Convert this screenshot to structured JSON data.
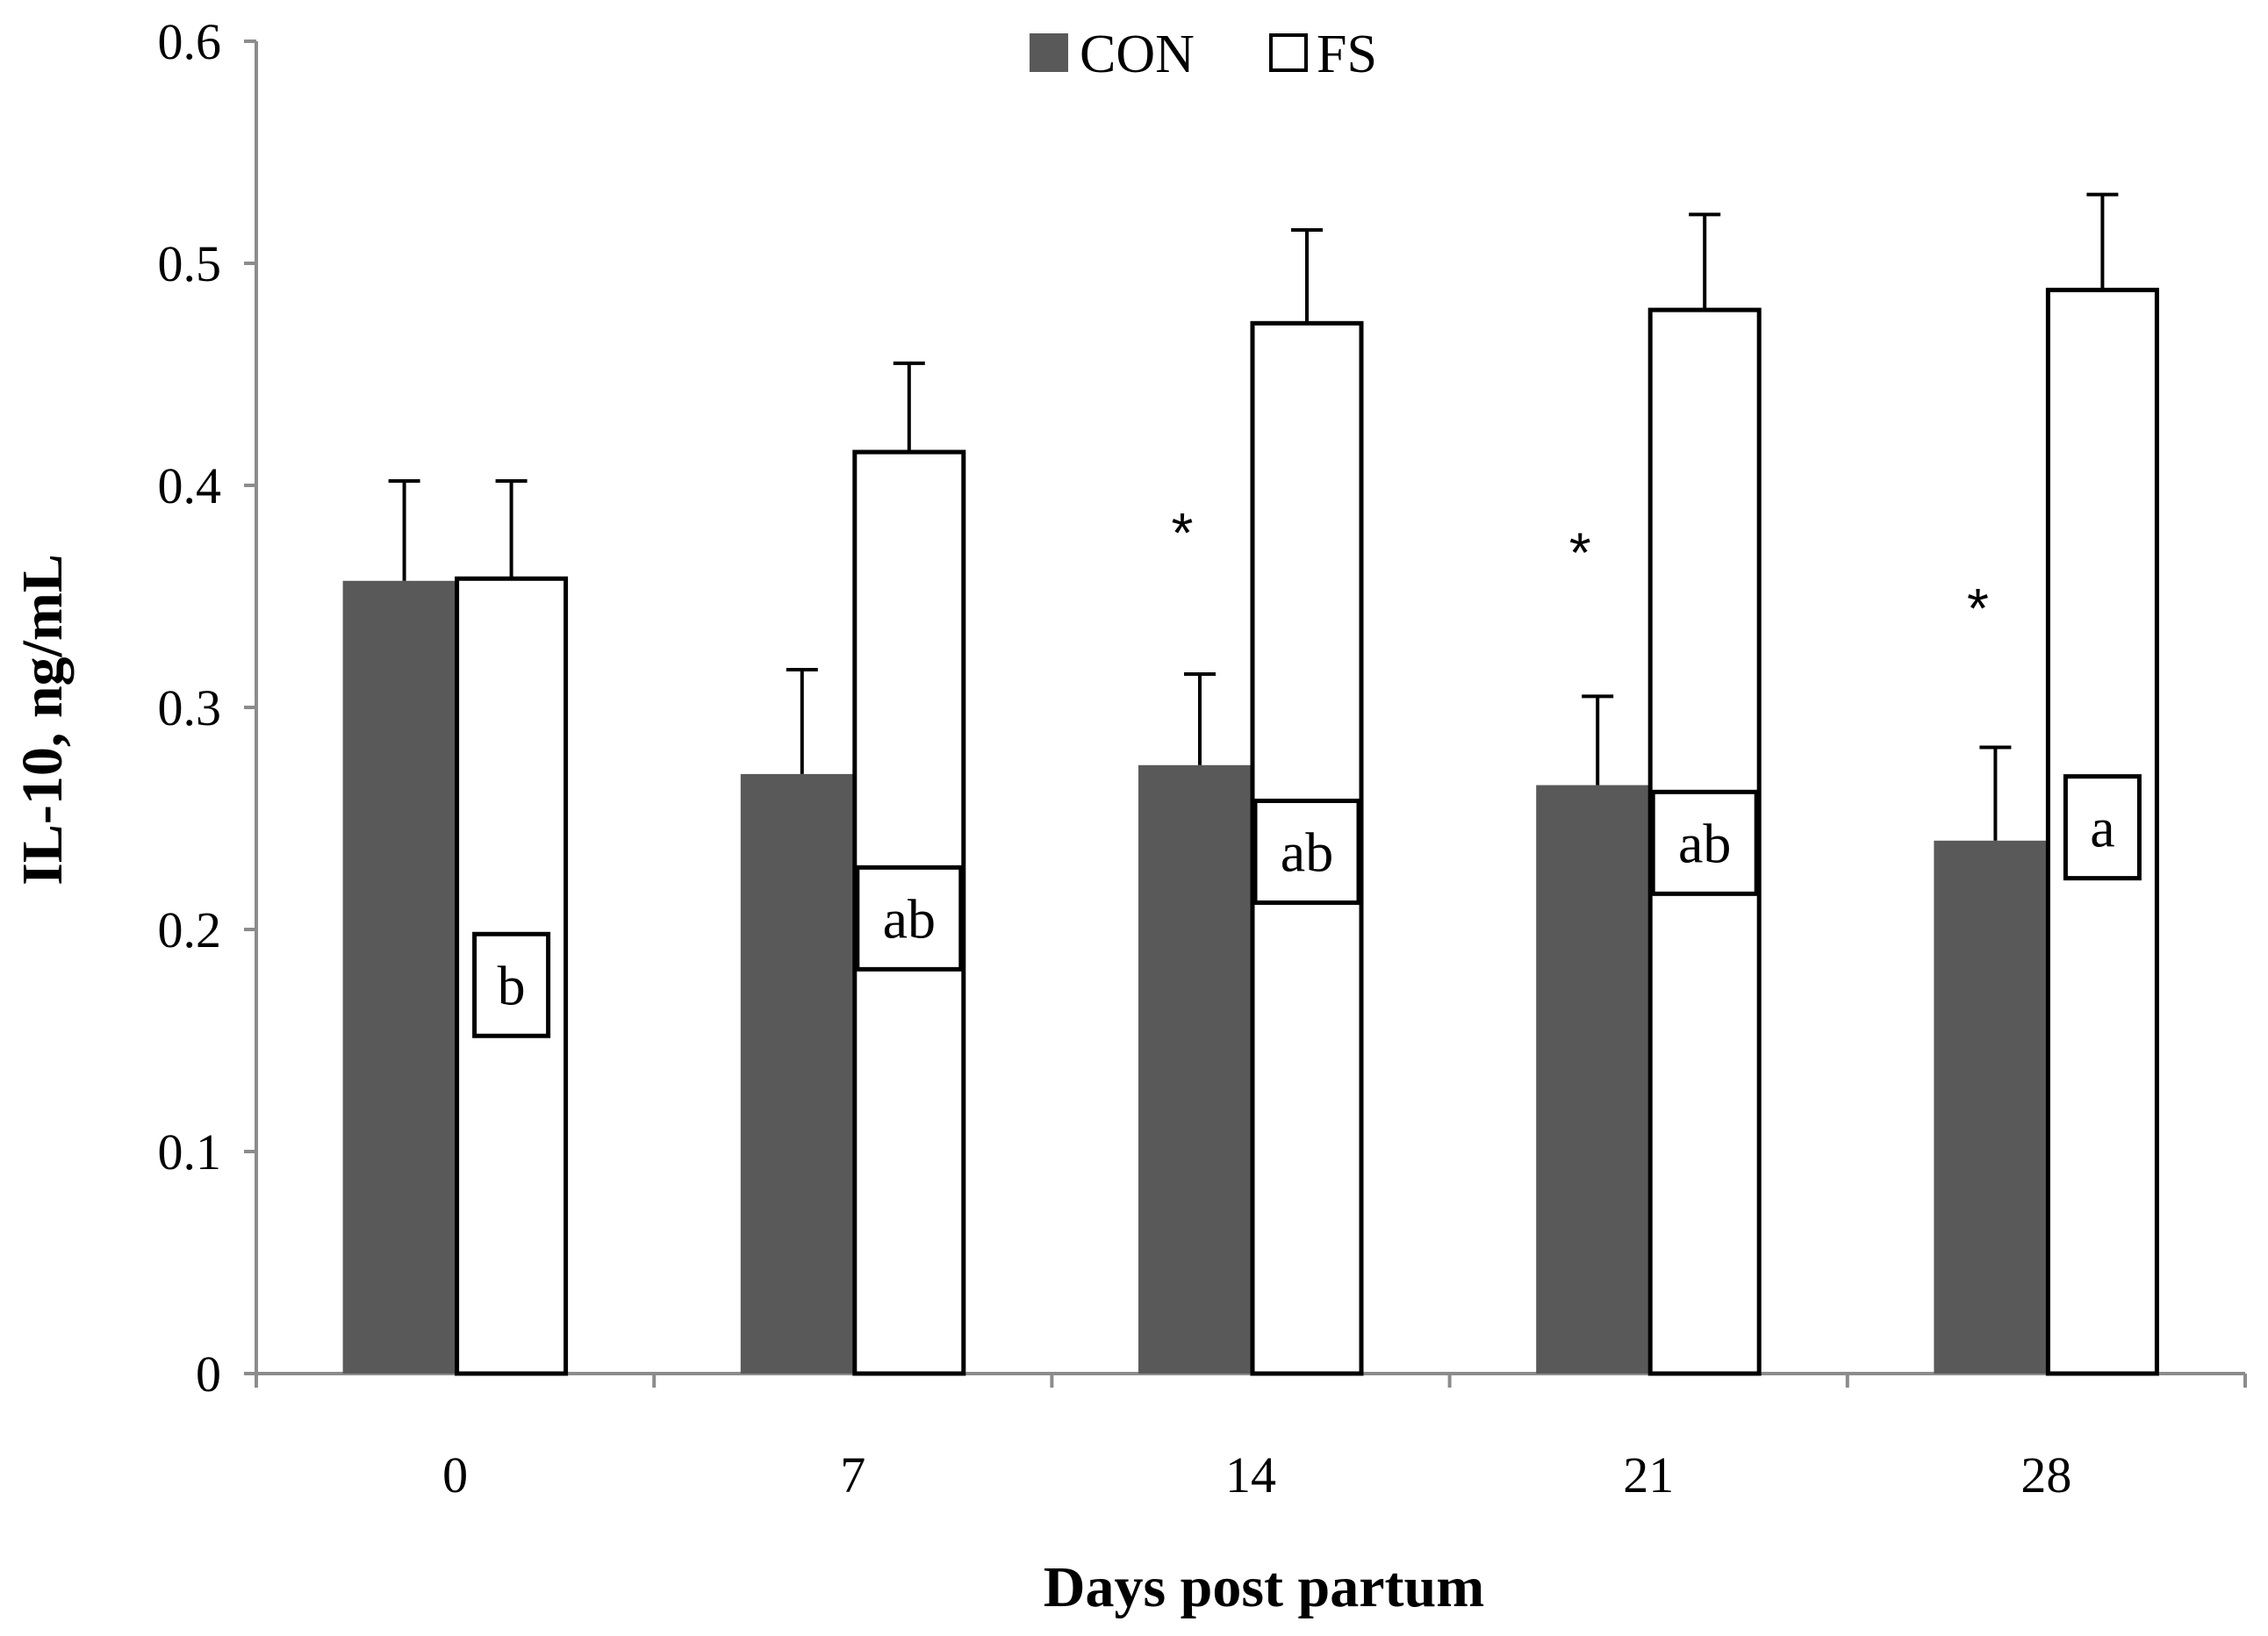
{
  "chart_data": {
    "type": "bar",
    "title": "",
    "xlabel": "Days post partum",
    "ylabel": "IL-10, ng/mL",
    "ylim": [
      0,
      0.6
    ],
    "yticks": [
      "0",
      "0.1",
      "0.2",
      "0.3",
      "0.4",
      "0.5",
      "0.6"
    ],
    "categories": [
      "0",
      "7",
      "14",
      "21",
      "28"
    ],
    "grid": false,
    "legend_position": "top-center",
    "series": [
      {
        "name": "CON",
        "color": "#595959",
        "values": [
          0.357,
          0.27,
          0.274,
          0.265,
          0.24
        ],
        "error": [
          0.045,
          0.047,
          0.041,
          0.04,
          0.042
        ]
      },
      {
        "name": "FS",
        "color": "#ffffff",
        "values": [
          0.358,
          0.415,
          0.473,
          0.479,
          0.488
        ],
        "error": [
          0.044,
          0.04,
          0.042,
          0.043,
          0.043
        ]
      }
    ],
    "significance_marks": [
      "",
      "",
      "*",
      "*",
      "*"
    ],
    "fs_letters": [
      "b",
      "ab",
      "ab",
      "ab",
      "a"
    ],
    "fs_letter_values": [
      0.175,
      0.205,
      0.235,
      0.239,
      0.246
    ]
  }
}
